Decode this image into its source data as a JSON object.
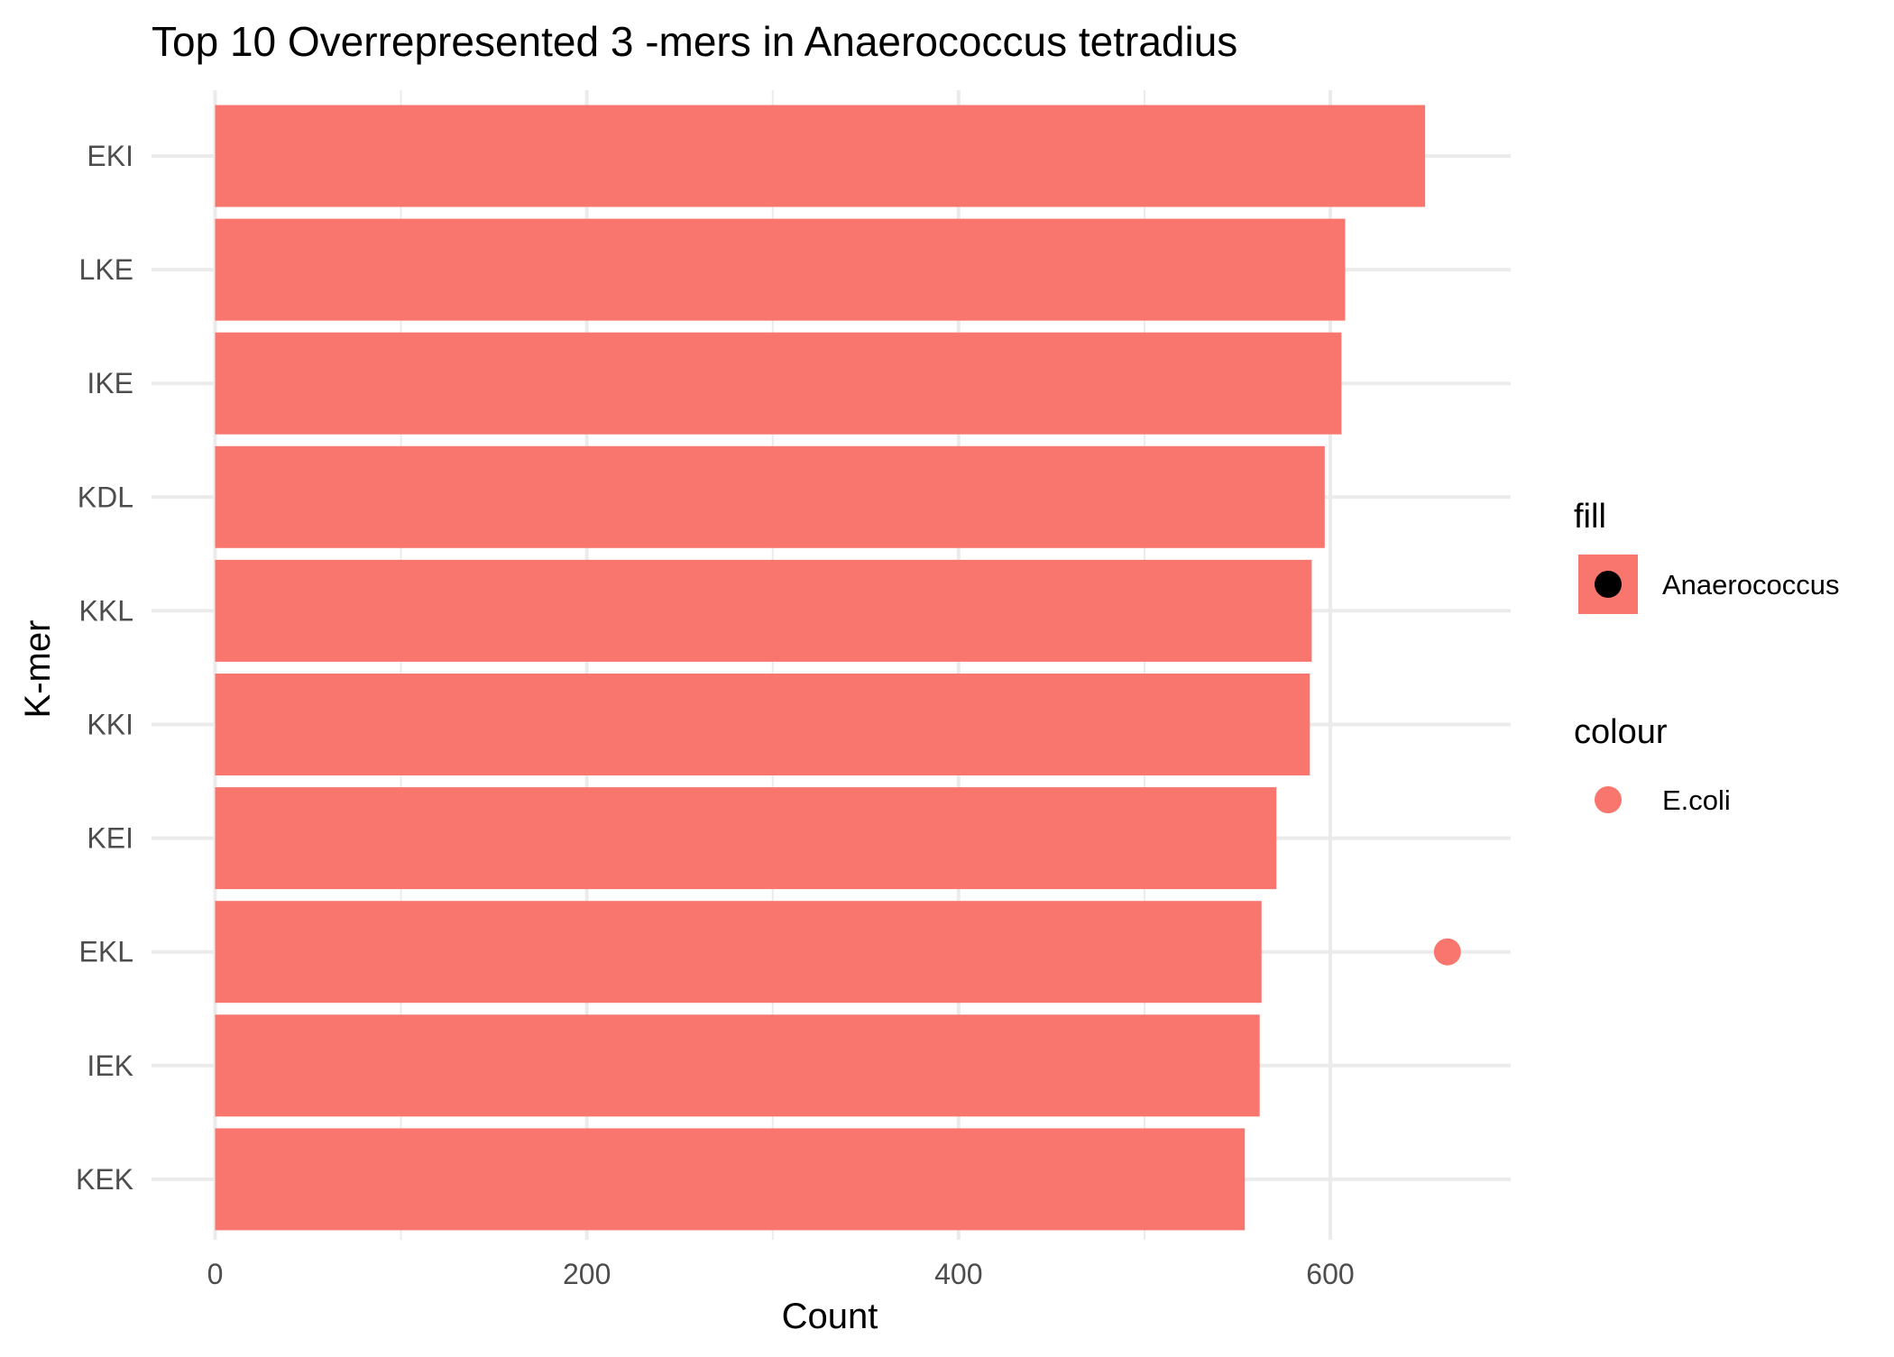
{
  "chart_data": {
    "type": "bar",
    "orientation": "horizontal",
    "title": "Top 10 Overrepresented 3 -mers in Anaerococcus tetradius",
    "xlabel": "Count",
    "ylabel": "K-mer",
    "xlim": [
      0,
      700
    ],
    "x_ticks": [
      0,
      200,
      400,
      600
    ],
    "x_minor_ticks": [
      100,
      300,
      500
    ],
    "categories": [
      "EKI",
      "LKE",
      "IKE",
      "KDL",
      "KKL",
      "KKI",
      "KEI",
      "EKL",
      "IEK",
      "KEK"
    ],
    "values": [
      651,
      608,
      606,
      597,
      590,
      589,
      571,
      563,
      562,
      554
    ],
    "bar_color": "#F8766D",
    "grid": true,
    "points": [
      {
        "category": "EKL",
        "value": 663,
        "series": "E.coli"
      }
    ],
    "point_color": "#F8766D",
    "legend": {
      "position": "right",
      "groups": [
        {
          "title": "fill",
          "entries": [
            {
              "label": "Anaerococcus",
              "fill": "#F8766D",
              "point": "#000000"
            }
          ]
        },
        {
          "title": "colour",
          "entries": [
            {
              "label": "E.coli",
              "point": "#F8766D"
            }
          ]
        }
      ]
    }
  }
}
